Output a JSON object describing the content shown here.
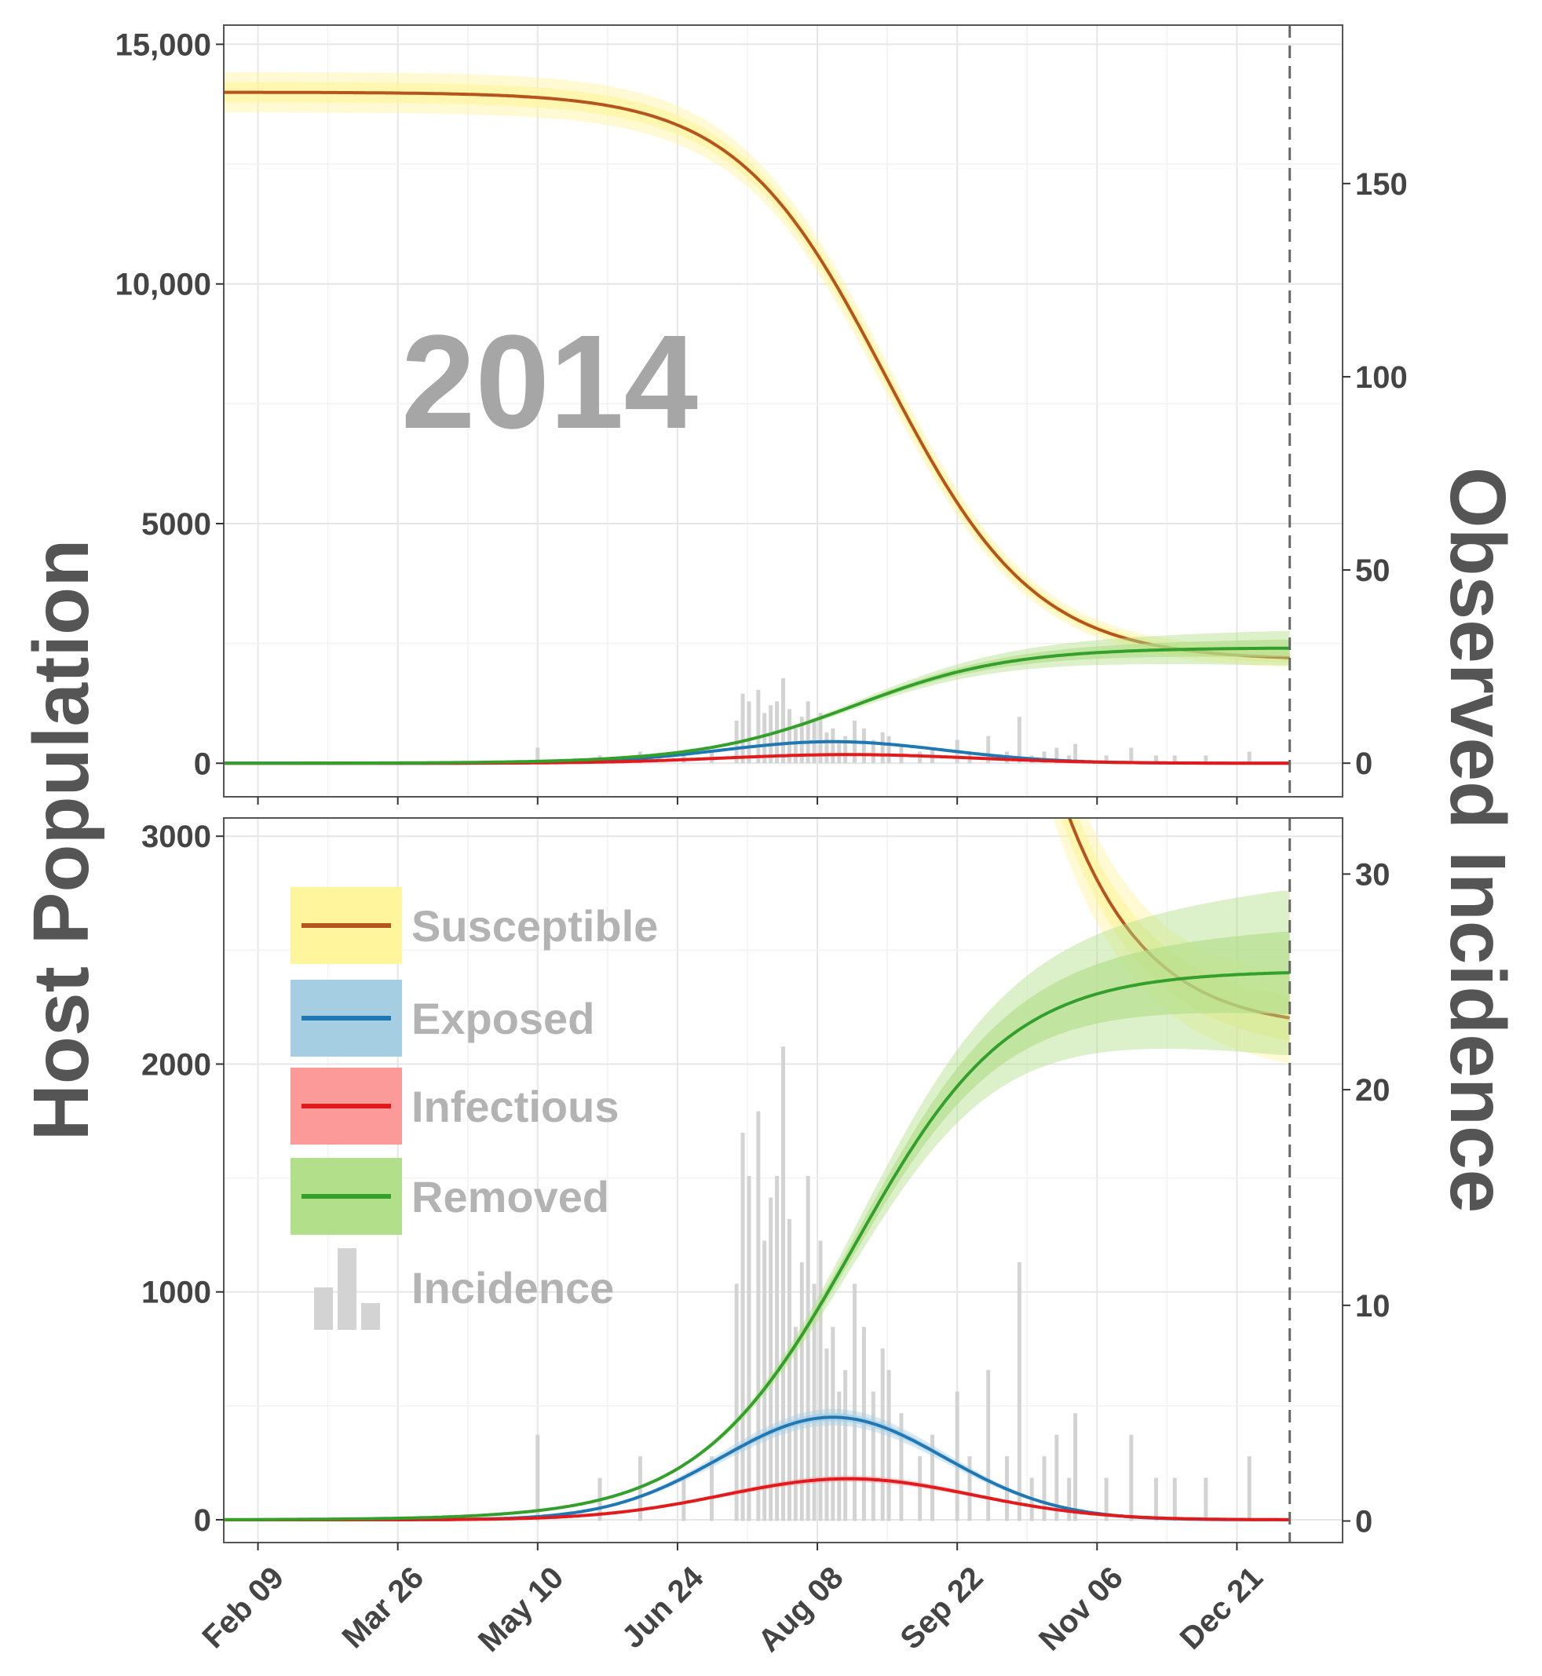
{
  "chart_data": {
    "type": "line",
    "year_annotation": "2014",
    "ylabel_left": "Host Population",
    "ylabel_right": "Observed Incidence",
    "date_ticks": [
      "Feb 09",
      "Mar 26",
      "May 10",
      "Jun 24",
      "Aug 08",
      "Sep 22",
      "Nov 06",
      "Dec 21"
    ],
    "x_range_days": [
      0,
      360
    ],
    "tick_days": [
      11,
      56,
      101,
      146,
      191,
      236,
      281,
      326
    ],
    "end_day": 343,
    "legend": [
      {
        "label": "Susceptible",
        "line": "#b5541c",
        "band": "#fff59d"
      },
      {
        "label": "Exposed",
        "line": "#1f78b4",
        "band": "#a6cee3"
      },
      {
        "label": "Infectious",
        "line": "#e31a1c",
        "band": "#fb9a99"
      },
      {
        "label": "Removed",
        "line": "#33a02c",
        "band": "#b2df8a"
      },
      {
        "label": "Incidence",
        "line": "#cccccc",
        "band": "#d3d3d3"
      }
    ],
    "panels": [
      {
        "name": "full",
        "y_left_range": [
          -700,
          15400
        ],
        "y_left_ticks": [
          0,
          5000,
          10000,
          15000
        ],
        "y_left_tick_labels": [
          "0",
          "5000",
          "10,000",
          "15,000"
        ],
        "y_right_range": [
          -8.7,
          191
        ],
        "y_right_ticks": [
          0,
          50,
          100,
          150
        ],
        "y_right_tick_labels": [
          "0",
          "50",
          "100",
          "150"
        ]
      },
      {
        "name": "zoom",
        "y_left_range": [
          -100,
          3080
        ],
        "y_left_ticks": [
          0,
          1000,
          2000,
          3000
        ],
        "y_left_tick_labels": [
          "0",
          "1000",
          "2000",
          "3000"
        ],
        "y_right_range": [
          -1.0,
          32.6
        ],
        "y_right_ticks": [
          0,
          10,
          20,
          30
        ],
        "y_right_tick_labels": [
          "0",
          "10",
          "20",
          "30"
        ]
      }
    ],
    "series": [
      {
        "name": "Susceptible",
        "curve": "logistic-decline",
        "start_value": 14000,
        "end_value": 2150,
        "midpoint_day": 213,
        "scale_days": 24
      },
      {
        "name": "Exposed",
        "curve": "gaussian",
        "peak_value": 450,
        "peak_day": 196,
        "sd_days": 36
      },
      {
        "name": "Infectious",
        "curve": "gaussian",
        "peak_value": 180,
        "peak_day": 201,
        "sd_days": 40
      },
      {
        "name": "Removed",
        "curve": "logistic-growth",
        "start_value": 0,
        "end_value": 2410,
        "midpoint_day": 203,
        "scale_days": 25
      }
    ],
    "incidence": {
      "days": [
        101,
        121,
        134,
        148,
        157,
        165,
        167,
        169,
        172,
        174,
        176,
        178,
        180,
        182,
        184,
        186,
        188,
        190,
        192,
        194,
        196,
        198,
        200,
        203,
        206,
        209,
        212,
        214,
        218,
        224,
        228,
        236,
        240,
        246,
        252,
        256,
        260,
        264,
        268,
        272,
        274,
        284,
        292,
        300,
        306,
        316,
        330
      ],
      "values": [
        4,
        2,
        3,
        2,
        3,
        11,
        18,
        16,
        19,
        13,
        15,
        16,
        22,
        14,
        9,
        12,
        16,
        11,
        13,
        8,
        9,
        6,
        7,
        11,
        9,
        6,
        8,
        7,
        5,
        3,
        4,
        6,
        3,
        7,
        3,
        12,
        2,
        3,
        4,
        2,
        5,
        2,
        4,
        2,
        2,
        2,
        3
      ]
    }
  }
}
